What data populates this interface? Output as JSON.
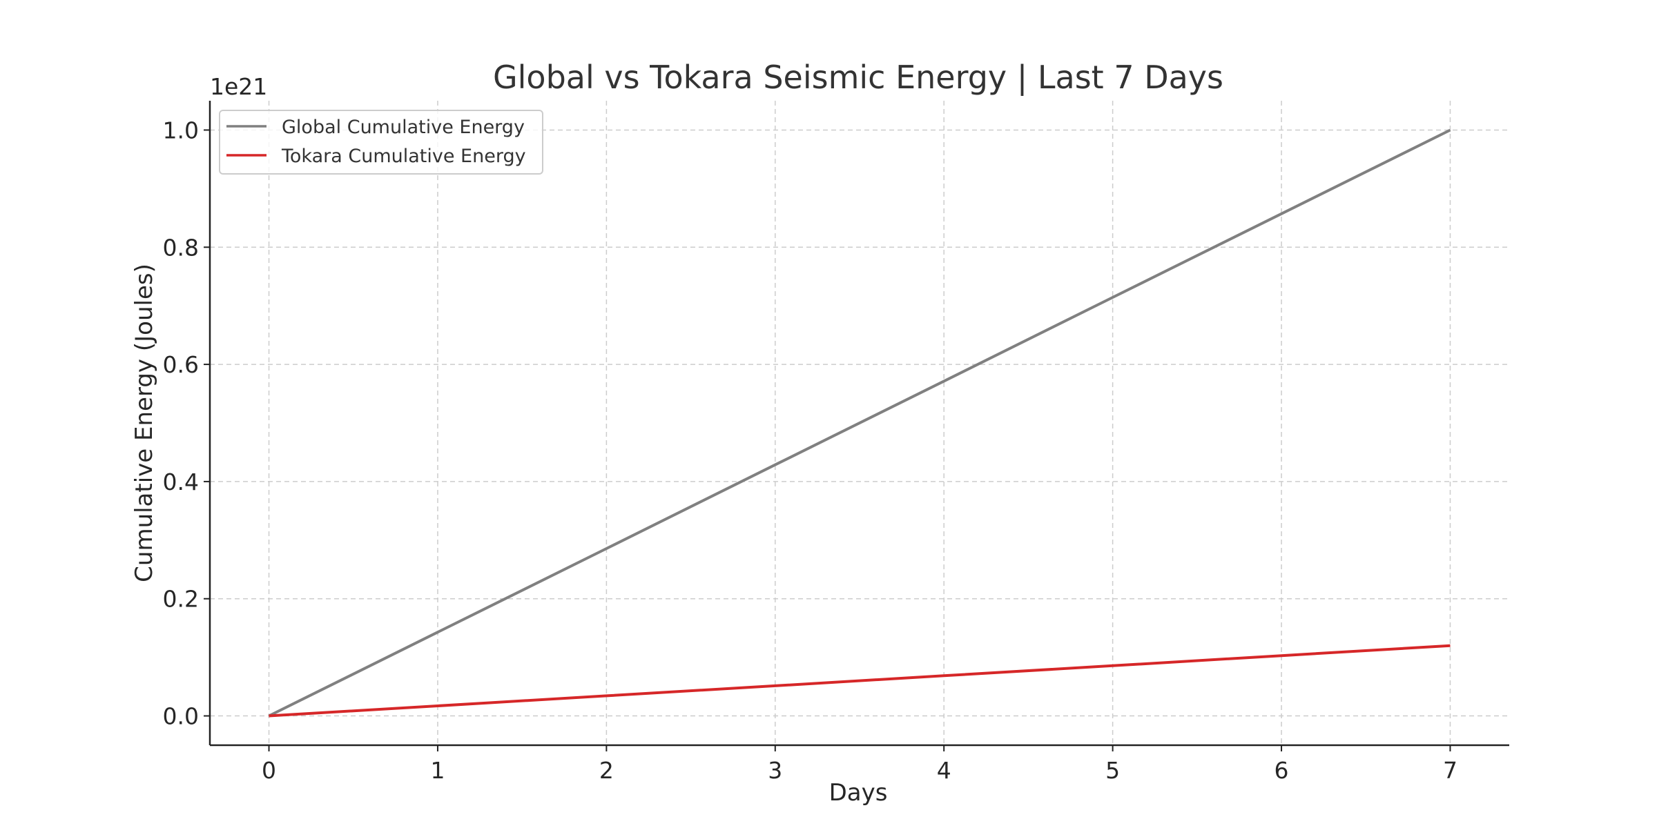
{
  "chart_data": {
    "type": "line",
    "title": "Global vs Tokara Seismic Energy | Last 7 Days",
    "xlabel": "Days",
    "ylabel": "Cumulative Energy (Joules)",
    "y_offset_label": "1e21",
    "x": [
      0,
      1,
      2,
      3,
      4,
      5,
      6,
      7
    ],
    "x_ticks": [
      0,
      1,
      2,
      3,
      4,
      5,
      6,
      7
    ],
    "x_tick_labels": [
      "0",
      "1",
      "2",
      "3",
      "4",
      "5",
      "6",
      "7"
    ],
    "y_ticks": [
      0,
      0.2,
      0.4,
      0.6,
      0.8,
      1.0
    ],
    "y_tick_labels": [
      "0.0",
      "0.2",
      "0.4",
      "0.6",
      "0.8",
      "1.0"
    ],
    "xlim": [
      -0.35,
      7.35
    ],
    "ylim": [
      -0.05,
      1.05
    ],
    "grid": true,
    "legend_position": "top-left",
    "series": [
      {
        "name": "Global Cumulative Energy",
        "color": "#808080",
        "values": [
          0,
          0.1429,
          0.2857,
          0.4286,
          0.5714,
          0.7143,
          0.8571,
          1.0
        ]
      },
      {
        "name": "Tokara Cumulative Energy",
        "color": "#d62728",
        "values": [
          0,
          0.0171,
          0.0343,
          0.0514,
          0.0686,
          0.0857,
          0.1029,
          0.12
        ]
      }
    ]
  }
}
